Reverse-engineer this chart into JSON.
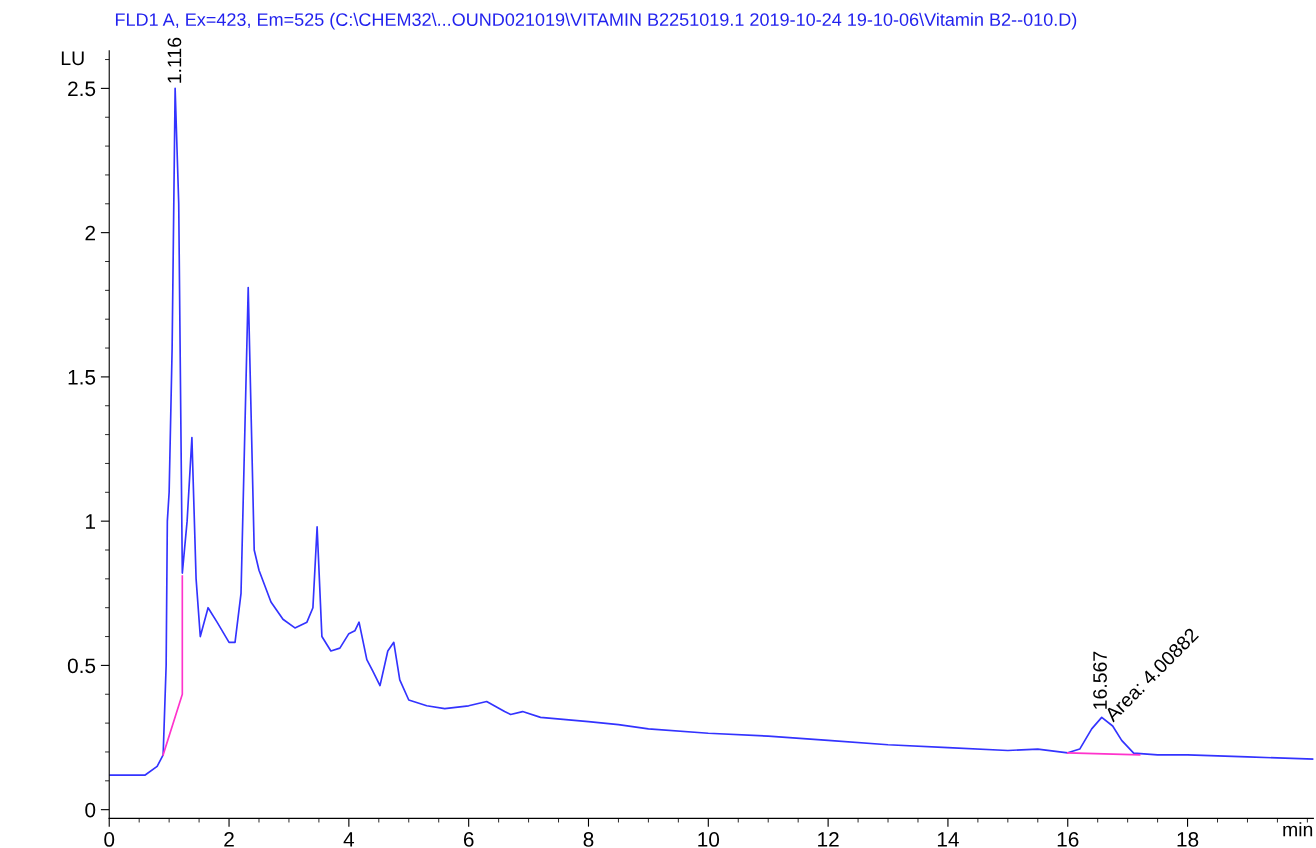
{
  "chart_data": {
    "type": "line",
    "title": "FLD1 A, Ex=423, Em=525 (C:\\CHEM32\\...OUND021019\\VITAMIN B2251019.1 2019-10-24 19-10-06\\Vitamin B2--010.D)",
    "xlabel": "min",
    "ylabel": "LU",
    "series": [
      {
        "color": "#3333ff",
        "x": [
          0,
          0.6,
          0.8,
          0.9,
          0.95,
          0.97,
          1.0,
          1.05,
          1.1,
          1.16,
          1.22,
          1.3,
          1.38,
          1.45,
          1.52,
          1.65,
          1.8,
          2.0,
          2.1,
          2.2,
          2.32,
          2.42,
          2.5,
          2.7,
          2.9,
          3.1,
          3.3,
          3.4,
          3.47,
          3.55,
          3.7,
          3.85,
          4.0,
          4.1,
          4.17,
          4.3,
          4.4,
          4.52,
          4.65,
          4.75,
          4.85,
          5.0,
          5.3,
          5.6,
          6.0,
          6.3,
          6.6,
          6.7,
          6.9,
          7.2,
          8,
          8.5,
          9,
          10,
          11,
          12,
          13,
          14,
          15,
          15.5,
          16,
          16.2,
          16.4,
          16.567,
          16.75,
          16.9,
          17.1,
          17.5,
          18,
          19,
          20.1
        ],
        "values": [
          0.12,
          0.12,
          0.15,
          0.19,
          0.5,
          1.0,
          1.1,
          1.6,
          2.5,
          2.1,
          0.82,
          1.0,
          1.29,
          0.8,
          0.6,
          0.7,
          0.65,
          0.58,
          0.58,
          0.75,
          1.81,
          0.9,
          0.83,
          0.72,
          0.66,
          0.63,
          0.65,
          0.7,
          0.98,
          0.6,
          0.55,
          0.56,
          0.61,
          0.62,
          0.65,
          0.52,
          0.48,
          0.43,
          0.55,
          0.58,
          0.45,
          0.38,
          0.36,
          0.35,
          0.36,
          0.375,
          0.34,
          0.33,
          0.34,
          0.32,
          0.305,
          0.295,
          0.28,
          0.265,
          0.255,
          0.24,
          0.225,
          0.215,
          0.205,
          0.21,
          0.197,
          0.21,
          0.28,
          0.32,
          0.29,
          0.24,
          0.196,
          0.19,
          0.19,
          0.183,
          0.175
        ]
      },
      {
        "color": "#ff33cc",
        "x": [
          0.9,
          1.22,
          1.22
        ],
        "values": [
          0.19,
          0.4,
          0.81
        ]
      },
      {
        "color": "#ff33cc",
        "x": [
          16.0,
          17.2
        ],
        "values": [
          0.197,
          0.19
        ]
      }
    ],
    "annotations": [
      {
        "text": "1.116",
        "x": 1.116,
        "y": 2.5
      },
      {
        "text": "16.567",
        "x": 16.567,
        "y": 0.33
      },
      {
        "text": "Area: 4.00882",
        "x": 16.7,
        "y": 0.3
      }
    ],
    "xlim": [
      0,
      20.1
    ],
    "ylim": [
      -0.03,
      2.63
    ],
    "xticks": [
      0,
      2,
      4,
      6,
      8,
      10,
      12,
      14,
      16,
      18
    ],
    "yticks": [
      0,
      0.5,
      1,
      1.5,
      2,
      2.5
    ],
    "grid": false,
    "legend": false
  }
}
